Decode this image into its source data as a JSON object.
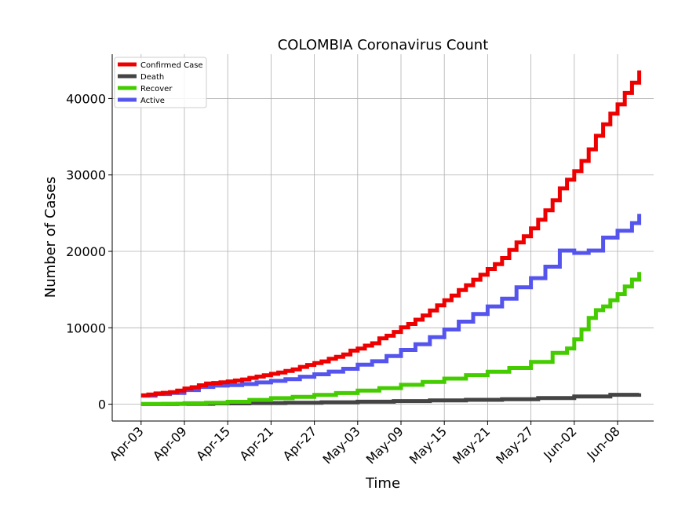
{
  "chart_data": {
    "type": "line",
    "title": "COLOMBIA Coronavirus Count",
    "xlabel": "Time",
    "ylabel": "Number of Cases",
    "grid": true,
    "legend_position": "top-left",
    "x_start": "2020-04-03",
    "x_ticks": [
      "Apr-03",
      "Apr-09",
      "Apr-15",
      "Apr-21",
      "Apr-27",
      "May-03",
      "May-09",
      "May-15",
      "May-21",
      "May-27",
      "Jun-02",
      "Jun-08"
    ],
    "y_ticks": [
      0,
      10000,
      20000,
      30000,
      40000
    ],
    "xlim": [
      "2020-03-30",
      "2020-06-13"
    ],
    "ylim": [
      -2200,
      45800
    ],
    "series": [
      {
        "name": "Confirmed Case",
        "color": "#ee0000",
        "values": [
          {
            "x": "2020-04-03",
            "y": 1161
          },
          {
            "x": "2020-04-04",
            "y": 1267
          },
          {
            "x": "2020-04-05",
            "y": 1406
          },
          {
            "x": "2020-04-06",
            "y": 1485
          },
          {
            "x": "2020-04-07",
            "y": 1579
          },
          {
            "x": "2020-04-08",
            "y": 1780
          },
          {
            "x": "2020-04-09",
            "y": 2054
          },
          {
            "x": "2020-04-10",
            "y": 2223
          },
          {
            "x": "2020-04-11",
            "y": 2473
          },
          {
            "x": "2020-04-12",
            "y": 2709
          },
          {
            "x": "2020-04-13",
            "y": 2776
          },
          {
            "x": "2020-04-14",
            "y": 2852
          },
          {
            "x": "2020-04-15",
            "y": 2979
          },
          {
            "x": "2020-04-16",
            "y": 3105
          },
          {
            "x": "2020-04-17",
            "y": 3233
          },
          {
            "x": "2020-04-18",
            "y": 3439
          },
          {
            "x": "2020-04-19",
            "y": 3621
          },
          {
            "x": "2020-04-20",
            "y": 3792
          },
          {
            "x": "2020-04-21",
            "y": 3977
          },
          {
            "x": "2020-04-22",
            "y": 4149
          },
          {
            "x": "2020-04-23",
            "y": 4356
          },
          {
            "x": "2020-04-24",
            "y": 4561
          },
          {
            "x": "2020-04-25",
            "y": 4881
          },
          {
            "x": "2020-04-26",
            "y": 5142
          },
          {
            "x": "2020-04-27",
            "y": 5379
          },
          {
            "x": "2020-04-28",
            "y": 5597
          },
          {
            "x": "2020-04-29",
            "y": 5949
          },
          {
            "x": "2020-04-30",
            "y": 6207
          },
          {
            "x": "2020-05-01",
            "y": 6507
          },
          {
            "x": "2020-05-02",
            "y": 7006
          },
          {
            "x": "2020-05-03",
            "y": 7285
          },
          {
            "x": "2020-05-04",
            "y": 7668
          },
          {
            "x": "2020-05-05",
            "y": 7973
          },
          {
            "x": "2020-05-06",
            "y": 8613
          },
          {
            "x": "2020-05-07",
            "y": 8959
          },
          {
            "x": "2020-05-08",
            "y": 9456
          },
          {
            "x": "2020-05-09",
            "y": 10051
          },
          {
            "x": "2020-05-10",
            "y": 10495
          },
          {
            "x": "2020-05-11",
            "y": 11063
          },
          {
            "x": "2020-05-12",
            "y": 11613
          },
          {
            "x": "2020-05-13",
            "y": 12272
          },
          {
            "x": "2020-05-14",
            "y": 12930
          },
          {
            "x": "2020-05-15",
            "y": 13610
          },
          {
            "x": "2020-05-16",
            "y": 14216
          },
          {
            "x": "2020-05-17",
            "y": 14939
          },
          {
            "x": "2020-05-18",
            "y": 15574
          },
          {
            "x": "2020-05-19",
            "y": 16295
          },
          {
            "x": "2020-05-20",
            "y": 16935
          },
          {
            "x": "2020-05-21",
            "y": 17687
          },
          {
            "x": "2020-05-22",
            "y": 18330
          },
          {
            "x": "2020-05-23",
            "y": 19131
          },
          {
            "x": "2020-05-24",
            "y": 20177
          },
          {
            "x": "2020-05-25",
            "y": 21175
          },
          {
            "x": "2020-05-26",
            "y": 21981
          },
          {
            "x": "2020-05-27",
            "y": 23003
          },
          {
            "x": "2020-05-28",
            "y": 24141
          },
          {
            "x": "2020-05-29",
            "y": 25366
          },
          {
            "x": "2020-05-30",
            "y": 26688
          },
          {
            "x": "2020-05-31",
            "y": 28236
          },
          {
            "x": "2020-06-01",
            "y": 29383
          },
          {
            "x": "2020-06-02",
            "y": 30493
          },
          {
            "x": "2020-06-03",
            "y": 31833
          },
          {
            "x": "2020-06-04",
            "y": 33354
          },
          {
            "x": "2020-06-05",
            "y": 35120
          },
          {
            "x": "2020-06-06",
            "y": 36635
          },
          {
            "x": "2020-06-07",
            "y": 38027
          },
          {
            "x": "2020-06-08",
            "y": 39236
          },
          {
            "x": "2020-06-09",
            "y": 40719
          },
          {
            "x": "2020-06-10",
            "y": 42078
          },
          {
            "x": "2020-06-11",
            "y": 43682
          }
        ]
      },
      {
        "name": "Death",
        "color": "#444444",
        "values": [
          {
            "x": "2020-04-03",
            "y": 19
          },
          {
            "x": "2020-04-08",
            "y": 46
          },
          {
            "x": "2020-04-13",
            "y": 112
          },
          {
            "x": "2020-04-18",
            "y": 153
          },
          {
            "x": "2020-04-23",
            "y": 199
          },
          {
            "x": "2020-04-28",
            "y": 253
          },
          {
            "x": "2020-05-03",
            "y": 324
          },
          {
            "x": "2020-05-08",
            "y": 407
          },
          {
            "x": "2020-05-13",
            "y": 493
          },
          {
            "x": "2020-05-18",
            "y": 574
          },
          {
            "x": "2020-05-23",
            "y": 652
          },
          {
            "x": "2020-05-28",
            "y": 803
          },
          {
            "x": "2020-06-02",
            "y": 1009
          },
          {
            "x": "2020-06-07",
            "y": 1230
          },
          {
            "x": "2020-06-11",
            "y": 1433
          }
        ]
      },
      {
        "name": "Recover",
        "color": "#44cc00",
        "values": [
          {
            "x": "2020-04-03",
            "y": 22
          },
          {
            "x": "2020-04-06",
            "y": 55
          },
          {
            "x": "2020-04-09",
            "y": 123
          },
          {
            "x": "2020-04-12",
            "y": 197
          },
          {
            "x": "2020-04-15",
            "y": 323
          },
          {
            "x": "2020-04-18",
            "y": 562
          },
          {
            "x": "2020-04-21",
            "y": 787
          },
          {
            "x": "2020-04-24",
            "y": 953
          },
          {
            "x": "2020-04-27",
            "y": 1214
          },
          {
            "x": "2020-04-30",
            "y": 1459
          },
          {
            "x": "2020-05-03",
            "y": 1786
          },
          {
            "x": "2020-05-06",
            "y": 2104
          },
          {
            "x": "2020-05-09",
            "y": 2543
          },
          {
            "x": "2020-05-12",
            "y": 2922
          },
          {
            "x": "2020-05-15",
            "y": 3351
          },
          {
            "x": "2020-05-18",
            "y": 3800
          },
          {
            "x": "2020-05-21",
            "y": 4243
          },
          {
            "x": "2020-05-24",
            "y": 4735
          },
          {
            "x": "2020-05-27",
            "y": 5530
          },
          {
            "x": "2020-05-30",
            "y": 6710
          },
          {
            "x": "2020-06-01",
            "y": 7300
          },
          {
            "x": "2020-06-02",
            "y": 8500
          },
          {
            "x": "2020-06-03",
            "y": 9800
          },
          {
            "x": "2020-06-04",
            "y": 11300
          },
          {
            "x": "2020-06-05",
            "y": 12300
          },
          {
            "x": "2020-06-06",
            "y": 12800
          },
          {
            "x": "2020-06-07",
            "y": 13600
          },
          {
            "x": "2020-06-08",
            "y": 14400
          },
          {
            "x": "2020-06-09",
            "y": 15400
          },
          {
            "x": "2020-06-10",
            "y": 16300
          },
          {
            "x": "2020-06-11",
            "y": 17300
          }
        ]
      },
      {
        "name": "Active",
        "color": "#5555ee",
        "values": [
          {
            "x": "2020-04-03",
            "y": 1120
          },
          {
            "x": "2020-04-05",
            "y": 1340
          },
          {
            "x": "2020-04-07",
            "y": 1480
          },
          {
            "x": "2020-04-09",
            "y": 1850
          },
          {
            "x": "2020-04-11",
            "y": 2260
          },
          {
            "x": "2020-04-13",
            "y": 2440
          },
          {
            "x": "2020-04-15",
            "y": 2500
          },
          {
            "x": "2020-04-17",
            "y": 2640
          },
          {
            "x": "2020-04-19",
            "y": 2850
          },
          {
            "x": "2020-04-21",
            "y": 3050
          },
          {
            "x": "2020-04-23",
            "y": 3280
          },
          {
            "x": "2020-04-25",
            "y": 3600
          },
          {
            "x": "2020-04-27",
            "y": 3920
          },
          {
            "x": "2020-04-29",
            "y": 4260
          },
          {
            "x": "2020-05-01",
            "y": 4640
          },
          {
            "x": "2020-05-03",
            "y": 5170
          },
          {
            "x": "2020-05-05",
            "y": 5620
          },
          {
            "x": "2020-05-07",
            "y": 6300
          },
          {
            "x": "2020-05-09",
            "y": 7100
          },
          {
            "x": "2020-05-11",
            "y": 7850
          },
          {
            "x": "2020-05-13",
            "y": 8780
          },
          {
            "x": "2020-05-15",
            "y": 9770
          },
          {
            "x": "2020-05-17",
            "y": 10800
          },
          {
            "x": "2020-05-19",
            "y": 11800
          },
          {
            "x": "2020-05-21",
            "y": 12800
          },
          {
            "x": "2020-05-23",
            "y": 13800
          },
          {
            "x": "2020-05-25",
            "y": 15300
          },
          {
            "x": "2020-05-27",
            "y": 16500
          },
          {
            "x": "2020-05-29",
            "y": 18000
          },
          {
            "x": "2020-05-31",
            "y": 20100
          },
          {
            "x": "2020-06-02",
            "y": 19800
          },
          {
            "x": "2020-06-04",
            "y": 20100
          },
          {
            "x": "2020-06-06",
            "y": 21800
          },
          {
            "x": "2020-06-08",
            "y": 22700
          },
          {
            "x": "2020-06-10",
            "y": 23700
          },
          {
            "x": "2020-06-11",
            "y": 24900
          }
        ]
      }
    ]
  }
}
